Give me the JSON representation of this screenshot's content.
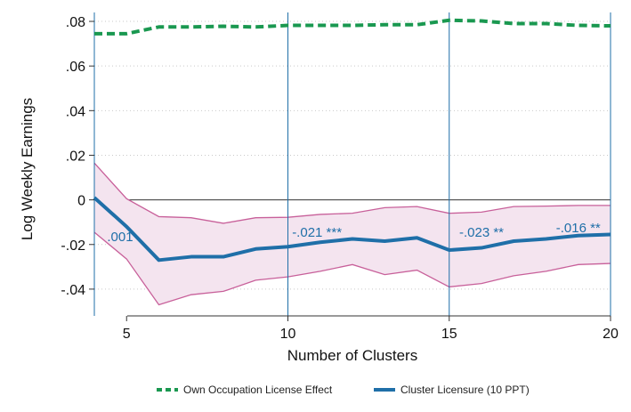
{
  "chart_data": {
    "type": "line",
    "title": "",
    "xlabel": "Number of Clusters",
    "ylabel": "Log Weekly Earnings",
    "xlim": [
      4,
      20
    ],
    "ylim": [
      -0.052,
      0.084
    ],
    "x_ticks": [
      5,
      10,
      15,
      20
    ],
    "x_tick_labels": [
      "5",
      "10",
      "15",
      "20"
    ],
    "y_ticks": [
      -0.04,
      -0.02,
      0,
      0.02,
      0.04,
      0.06,
      0.08
    ],
    "y_tick_labels": [
      "-.04",
      "-.02",
      "0",
      ".02",
      ".04",
      ".06",
      ".08"
    ],
    "grid": "horizontal dotted",
    "zero_line": 0,
    "vertical_lines": [
      4,
      10,
      15,
      20
    ],
    "legend_position": "bottom",
    "x": [
      4,
      5,
      6,
      7,
      8,
      9,
      10,
      11,
      12,
      13,
      14,
      15,
      16,
      17,
      18,
      19,
      20
    ],
    "series": [
      {
        "name": "Own Occupation License Effect",
        "style": "dashed",
        "color": "#1a9850",
        "values": [
          0.0745,
          0.0745,
          0.0775,
          0.0775,
          0.0778,
          0.0775,
          0.0782,
          0.0782,
          0.0782,
          0.0785,
          0.0785,
          0.0805,
          0.0802,
          0.079,
          0.079,
          0.0782,
          0.078
        ]
      },
      {
        "name": "Cluster Licensure (10 PPT)",
        "style": "solid",
        "color": "#1f6fa8",
        "values": [
          0.001,
          -0.012,
          -0.027,
          -0.0255,
          -0.0255,
          -0.022,
          -0.021,
          -0.019,
          -0.0175,
          -0.0185,
          -0.017,
          -0.0225,
          -0.0215,
          -0.0185,
          -0.0175,
          -0.016,
          -0.0155
        ],
        "ci_lower": [
          -0.0145,
          -0.0265,
          -0.047,
          -0.0425,
          -0.041,
          -0.036,
          -0.0345,
          -0.032,
          -0.029,
          -0.0335,
          -0.0315,
          -0.039,
          -0.0375,
          -0.034,
          -0.032,
          -0.029,
          -0.0285
        ],
        "ci_upper": [
          0.0165,
          0.0005,
          -0.0075,
          -0.008,
          -0.0105,
          -0.008,
          -0.0078,
          -0.0065,
          -0.006,
          -0.0035,
          -0.003,
          -0.006,
          -0.0055,
          -0.003,
          -0.0028,
          -0.0025,
          -0.0025
        ],
        "band_color": "#c8609a",
        "band_fill": "#f4e4ef"
      }
    ],
    "annotations": [
      {
        "text": ".001",
        "x": 4.8,
        "y": -0.0165
      },
      {
        "text": "-.021 ***",
        "x": 10.9,
        "y": -0.0145
      },
      {
        "text": "-.023 **",
        "x": 16.0,
        "y": -0.0145
      },
      {
        "text": "-.016 **",
        "x": 19.0,
        "y": -0.0125
      }
    ],
    "annotation_color": "#1f6fa8"
  }
}
